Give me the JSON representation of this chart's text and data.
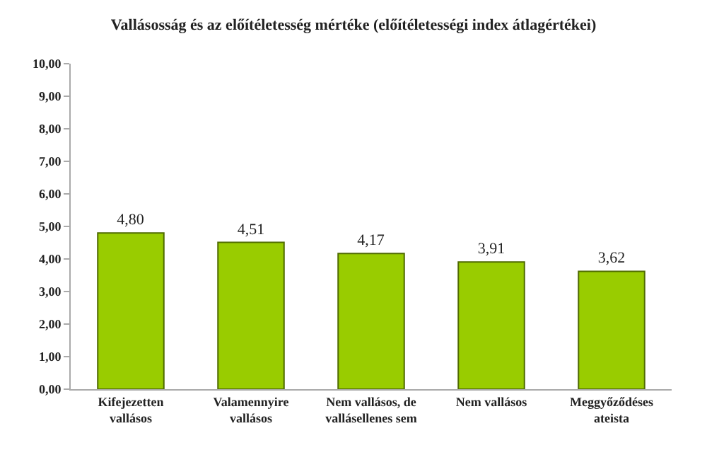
{
  "chart_data": {
    "type": "bar",
    "title": "Vallásosság és az előítéletesség mértéke (előítéletességi index átlagértékei)",
    "categories": [
      "Kifejezetten vallásos",
      "Valamennyire vallásos",
      "Nem vallásos, de vallásellenes sem",
      "Nem vallásos",
      "Meggyőződéses ateista"
    ],
    "values": [
      4.8,
      4.51,
      4.17,
      3.91,
      3.62
    ],
    "value_labels": [
      "4,80",
      "4,51",
      "4,17",
      "3,91",
      "3,62"
    ],
    "color": "#99cc00",
    "ylim": [
      0,
      10
    ],
    "yticks": [
      {
        "value": 0,
        "label": "0,00"
      },
      {
        "value": 1,
        "label": "1,00"
      },
      {
        "value": 2,
        "label": "2,00"
      },
      {
        "value": 3,
        "label": "3,00"
      },
      {
        "value": 4,
        "label": "4,00"
      },
      {
        "value": 5,
        "label": "5,00"
      },
      {
        "value": 6,
        "label": "6,00"
      },
      {
        "value": 7,
        "label": "7,00"
      },
      {
        "value": 8,
        "label": "8,00"
      },
      {
        "value": 9,
        "label": "9,00"
      },
      {
        "value": 10,
        "label": "10,00"
      }
    ],
    "grid": false
  }
}
